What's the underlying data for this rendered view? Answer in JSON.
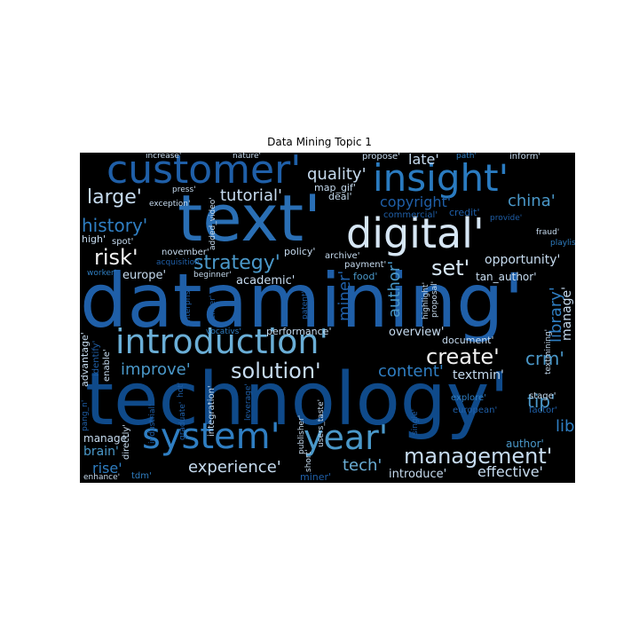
{
  "title": "Data Mining Topic 1",
  "colors": {
    "background": "#000000",
    "page": "#ffffff",
    "blue_dark": "#08306b",
    "blue_mid": "#1f5fa8",
    "blue_light": "#6aaed6",
    "pale": "#c6dbef",
    "white": "#f0f0f0"
  },
  "words": [
    {
      "text": "datamining'",
      "color": "#1f5fa8"
    },
    {
      "text": "technology'",
      "color": "#0f4a8a"
    },
    {
      "text": "text'",
      "color": "#2a6fb5"
    },
    {
      "text": "digital'",
      "color": "#d6e6f4"
    },
    {
      "text": "customer'",
      "color": "#1f5fa8"
    },
    {
      "text": "insight'",
      "color": "#2a7bc0"
    },
    {
      "text": "system'",
      "color": "#2f7ec2"
    },
    {
      "text": "year'",
      "color": "#4a98c9"
    },
    {
      "text": "introduction'",
      "color": "#6aaed6"
    },
    {
      "text": "management'",
      "color": "#c6dbef"
    },
    {
      "text": "solution'",
      "color": "#c6dbef"
    },
    {
      "text": "strategy'",
      "color": "#4a98c9"
    },
    {
      "text": "create'",
      "color": "#f0f0f0"
    },
    {
      "text": "experience'",
      "color": "#c6dbef"
    },
    {
      "text": "history'",
      "color": "#2f7ec2"
    },
    {
      "text": "large'",
      "color": "#c6dbef"
    },
    {
      "text": "tutorial'",
      "color": "#c6dbef"
    },
    {
      "text": "quality'",
      "color": "#c6dbef"
    },
    {
      "text": "copyright'",
      "color": "#1f5fa8"
    },
    {
      "text": "china'",
      "color": "#4a98c9"
    },
    {
      "text": "risk'",
      "color": "#f0f0f0"
    },
    {
      "text": "set'",
      "color": "#d6e6f4"
    },
    {
      "text": "late'",
      "color": "#c6dbef"
    },
    {
      "text": "improve'",
      "color": "#4a98c9"
    },
    {
      "text": "content'",
      "color": "#2f7ec2"
    },
    {
      "text": "textmin'",
      "color": "#c6dbef"
    },
    {
      "text": "tech'",
      "color": "#6aaed6"
    },
    {
      "text": "effective'",
      "color": "#c6dbef"
    },
    {
      "text": "introduce'",
      "color": "#c6dbef"
    },
    {
      "text": "rise'",
      "color": "#2f7ec2"
    },
    {
      "text": "brain'",
      "color": "#4a98c9"
    },
    {
      "text": "opportunity'",
      "color": "#c6dbef"
    },
    {
      "text": "europe'",
      "color": "#c6dbef"
    },
    {
      "text": "tip'",
      "color": "#4a98c9"
    },
    {
      "text": "crm'",
      "color": "#4a98c9"
    },
    {
      "text": "library'",
      "color": "#2f7ec2"
    },
    {
      "text": "manage'",
      "color": "#c6dbef"
    },
    {
      "text": "author'",
      "color": "#4a98c9"
    },
    {
      "text": "miner'",
      "color": "#1f5fa8"
    },
    {
      "text": "tdm'",
      "color": "#2f7ec2"
    },
    {
      "text": "enhance'",
      "color": "#c6dbef"
    },
    {
      "text": "academic'",
      "color": "#c6dbef"
    },
    {
      "text": "policy'",
      "color": "#c6dbef"
    },
    {
      "text": "performance'",
      "color": "#c6dbef"
    },
    {
      "text": "vocativs'",
      "color": "#2f7ec2"
    },
    {
      "text": "food'",
      "color": "#4a98c9"
    },
    {
      "text": "overview'",
      "color": "#c6dbef"
    },
    {
      "text": "document'",
      "color": "#c6dbef"
    },
    {
      "text": "tan_author'",
      "color": "#c6dbef"
    },
    {
      "text": "stage'",
      "color": "#c6dbef"
    },
    {
      "text": "factor'",
      "color": "#1f5fa8"
    },
    {
      "text": "european'",
      "color": "#1f5fa8"
    },
    {
      "text": "explore'",
      "color": "#2f7ec2"
    },
    {
      "text": "spot'",
      "color": "#c6dbef"
    },
    {
      "text": "high'",
      "color": "#c6dbef"
    },
    {
      "text": "press'",
      "color": "#c6dbef"
    },
    {
      "text": "exception'",
      "color": "#c6dbef"
    },
    {
      "text": "november'",
      "color": "#c6dbef"
    },
    {
      "text": "acquisition'",
      "color": "#1f5fa8"
    },
    {
      "text": "beginner'",
      "color": "#c6dbef"
    },
    {
      "text": "worker'",
      "color": "#2f7ec2"
    },
    {
      "text": "archive'",
      "color": "#c6dbef"
    },
    {
      "text": "payment'",
      "color": "#c6dbef"
    },
    {
      "text": "map_gif'",
      "color": "#c6dbef"
    },
    {
      "text": "deal'",
      "color": "#c6dbef"
    },
    {
      "text": "commercial'",
      "color": "#1f5fa8"
    },
    {
      "text": "credit'",
      "color": "#1f5fa8"
    },
    {
      "text": "provide'",
      "color": "#1f5fa8"
    },
    {
      "text": "fraud'",
      "color": "#c6dbef"
    },
    {
      "text": "playlist'",
      "color": "#2f7ec2"
    },
    {
      "text": "increase'",
      "color": "#c6dbef"
    },
    {
      "text": "nature'",
      "color": "#c6dbef"
    },
    {
      "text": "propose'",
      "color": "#c6dbef"
    },
    {
      "text": "path'",
      "color": "#2f7ec2"
    },
    {
      "text": "inform'",
      "color": "#c6dbef"
    },
    {
      "text": "alternative'",
      "color": "#1f5fa8"
    },
    {
      "text": "control'",
      "color": "#c6dbef"
    },
    {
      "text": "initiative'",
      "color": "#c6dbef"
    },
    {
      "text": "generation'",
      "color": "#1f5fa8"
    },
    {
      "text": "added_video'",
      "color": "#c6dbef"
    },
    {
      "text": "enterprise'",
      "color": "#1f5fa8"
    },
    {
      "text": "deliver'",
      "color": "#1f5fa8"
    },
    {
      "text": "patent'",
      "color": "#1f5fa8"
    },
    {
      "text": "highlight'",
      "color": "#c6dbef"
    },
    {
      "text": "proposal'",
      "color": "#c6dbef"
    },
    {
      "text": "textmining'",
      "color": "#c6dbef"
    },
    {
      "text": "advantage'",
      "color": "#c6dbef"
    },
    {
      "text": "identify'",
      "color": "#1f5fa8"
    },
    {
      "text": "enable'",
      "color": "#c6dbef"
    },
    {
      "text": "hot'",
      "color": "#1f5fa8"
    },
    {
      "text": "graduate'",
      "color": "#1f5fa8"
    },
    {
      "text": "integration'",
      "color": "#c6dbef"
    },
    {
      "text": "leverage'",
      "color": "#1f5fa8"
    },
    {
      "text": "publisher'",
      "color": "#c6dbef"
    },
    {
      "text": "users_taste'",
      "color": "#c6dbef"
    },
    {
      "text": "pang_n'",
      "color": "#1f5fa8"
    },
    {
      "text": "industrial'",
      "color": "#1f5fa8"
    },
    {
      "text": "directly'",
      "color": "#c6dbef"
    },
    {
      "text": "short'",
      "color": "#c6dbef"
    },
    {
      "text": "single'",
      "color": "#1f5fa8"
    }
  ]
}
